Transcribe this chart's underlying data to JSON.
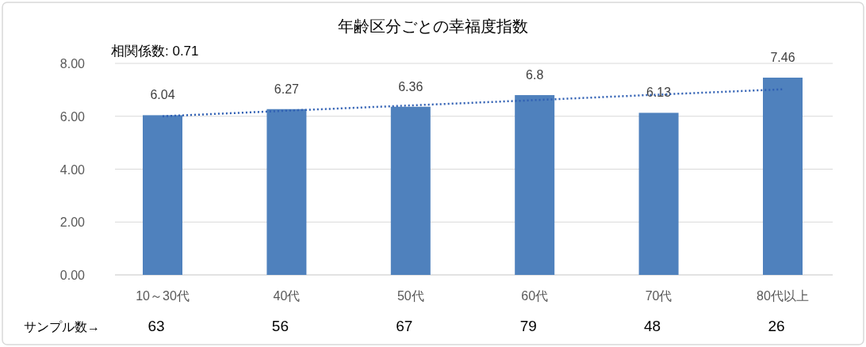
{
  "chart_data": {
    "type": "bar",
    "title": "年齢区分ごとの幸福度指数",
    "categories": [
      "10～30代",
      "40代",
      "50代",
      "60代",
      "70代",
      "80代以上"
    ],
    "series": [
      {
        "color": "#4f81bd",
        "values": [
          6.04,
          6.27,
          6.36,
          6.8,
          6.13,
          7.46
        ],
        "data_labels": true
      },
      {
        "type": "line",
        "color": "#2f5fb3",
        "line_style": "dotted",
        "values": [
          6.0,
          6.21,
          6.41,
          6.61,
          6.82,
          7.02
        ]
      }
    ],
    "ylim": [
      0,
      8
    ],
    "yticks": [
      {
        "value": 0,
        "label": "0.00"
      },
      {
        "value": 2,
        "label": "2.00"
      },
      {
        "value": 4,
        "label": "4.00"
      },
      {
        "value": 6,
        "label": "6.00"
      },
      {
        "value": 8,
        "label": "8.00"
      }
    ],
    "grid": "y",
    "annotations": [
      "相関係数: 0.71",
      "サンプル数→",
      "63",
      "56",
      "67",
      "79",
      "48",
      "26"
    ]
  }
}
